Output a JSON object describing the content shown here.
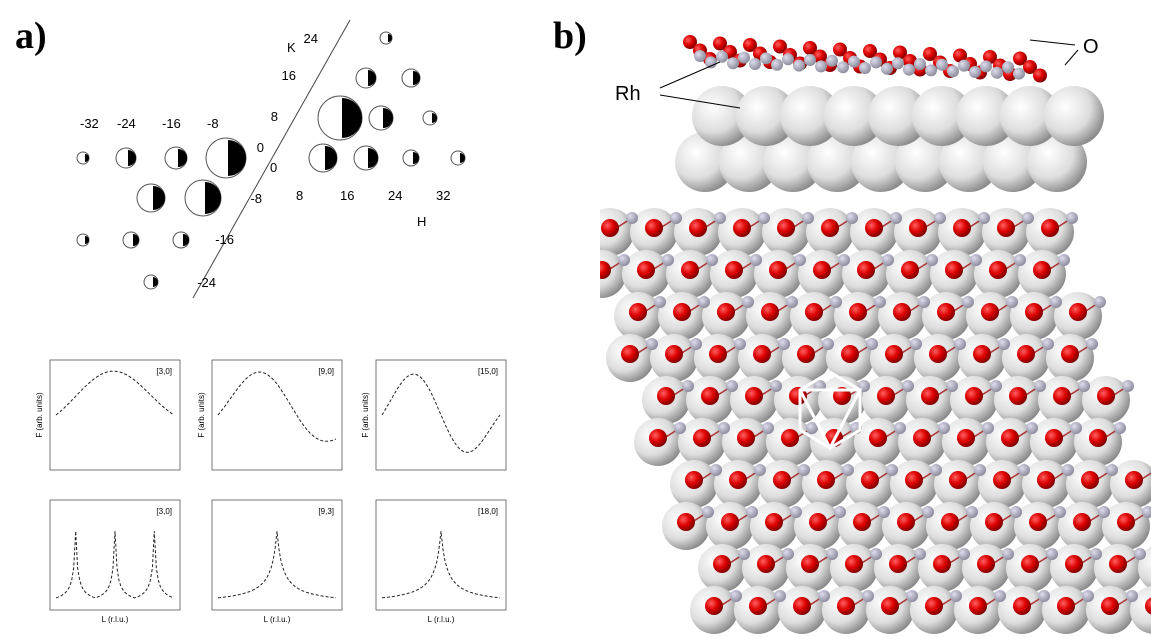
{
  "panel_a": {
    "label": "a)",
    "k_axis": {
      "name": "K",
      "ticks": [
        "24",
        "16",
        "8",
        "0",
        "-8",
        "-16",
        "-24"
      ]
    },
    "h_axis": {
      "name": "H",
      "ticks": [
        "-32",
        "-24",
        "-16",
        "-8",
        "0",
        "8",
        "16",
        "24",
        "32"
      ]
    },
    "plots": [
      {
        "tag": "[3,0]",
        "y_label": "F (arb. units)"
      },
      {
        "tag": "[9,0]",
        "y_label": "F (arb. units)"
      },
      {
        "tag": "[15,0]",
        "y_label": "F (arb. units)"
      },
      {
        "tag": "[3,0]",
        "x_label": "L (r.l.u.)"
      },
      {
        "tag": "[9,3]",
        "x_label": "L (r.l.u.)"
      },
      {
        "tag": "[18,0]",
        "x_label": "L (r.l.u.)"
      }
    ]
  },
  "panel_b": {
    "label": "b)",
    "atoms": {
      "oxygen": "O",
      "rhodium": "Rh"
    }
  }
}
